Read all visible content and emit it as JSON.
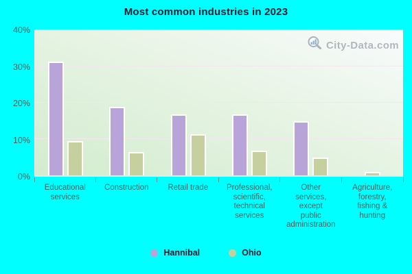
{
  "chart_data": {
    "type": "bar",
    "title": "Most common industries in 2023",
    "categories": [
      "Educational services",
      "Construction",
      "Retail trade",
      "Professional, scientific, technical services",
      "Other services, except public administration",
      "Agriculture, forestry, fishing & hunting"
    ],
    "categories_wrapped": [
      [
        "Educational",
        "services"
      ],
      [
        "Construction"
      ],
      [
        "Retail trade"
      ],
      [
        "Professional,",
        "scientific,",
        "technical",
        "services"
      ],
      [
        "Other",
        "services,",
        "except",
        "public",
        "administration"
      ],
      [
        "Agriculture,",
        "forestry,",
        "fishing &",
        "hunting"
      ]
    ],
    "series": [
      {
        "name": "Hannibal",
        "color": "#b9a4d9",
        "values": [
          31,
          18.5,
          16.5,
          16.5,
          14.5,
          0
        ]
      },
      {
        "name": "Ohio",
        "color": "#c5d09e",
        "values": [
          9,
          6,
          11,
          6.5,
          4.5,
          0.5
        ]
      }
    ],
    "unit": "%",
    "ylim": [
      0,
      40
    ],
    "ytick_values": [
      0,
      10,
      20,
      30,
      40
    ],
    "ytick_labels": [
      "0%",
      "10%",
      "20%",
      "30%",
      "40%"
    ],
    "grid": true,
    "legend_position": "bottom"
  },
  "watermark": {
    "text": "City-Data.com"
  },
  "colors": {
    "page_background": "#00ffff",
    "plot_gradient_bottom_left": "#d2ecce",
    "plot_gradient_top_right": "#f8fbfc",
    "gridline": "#f3e6f0",
    "bar_border": "#ffffff",
    "hannibal_bar": "#b9a4d9",
    "ohio_bar": "#c5d09e",
    "title_text": "#1d1d30",
    "axis_text": "#42605d",
    "legend_text": "#15152b",
    "watermark_text": "#b3b7bd",
    "tick_mark": "#6a8f8b"
  }
}
